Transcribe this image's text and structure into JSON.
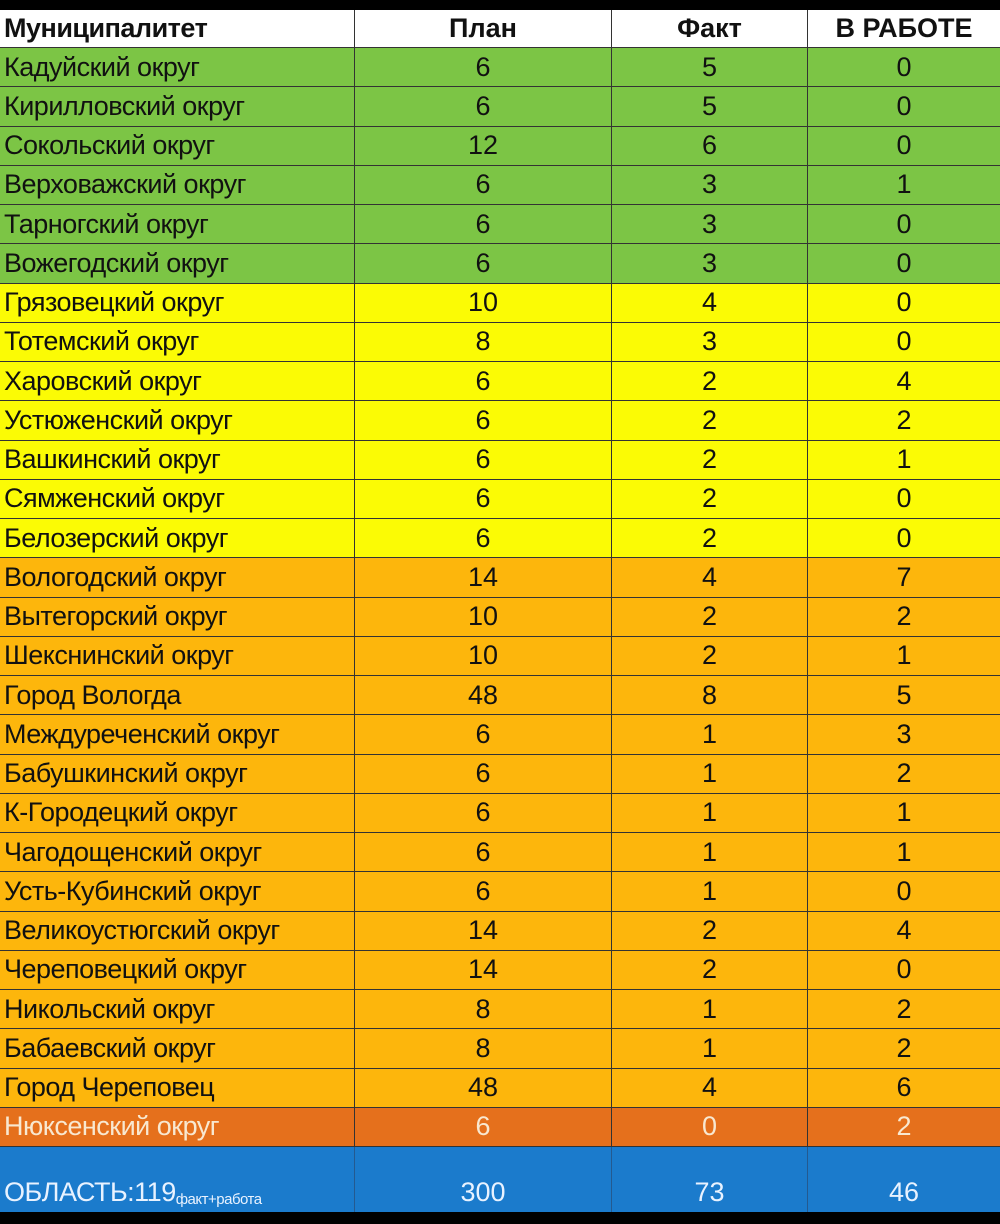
{
  "columns": [
    "Муниципалитет",
    "План",
    "Факт",
    "В РАБОТЕ"
  ],
  "colors": {
    "green": "#7cc545",
    "yellow": "#fbfb05",
    "orange": "#fdb60c",
    "dark_orange": "#e5701c",
    "total": "#1b7bcc"
  },
  "rows": [
    {
      "name": "Кадуйский округ",
      "plan": "6",
      "fact": "5",
      "work": "0",
      "group": "green"
    },
    {
      "name": "Кирилловский округ",
      "plan": "6",
      "fact": "5",
      "work": "0",
      "group": "green"
    },
    {
      "name": "Сокольский округ",
      "plan": "12",
      "fact": "6",
      "work": "0",
      "group": "green"
    },
    {
      "name": "Верховажский округ",
      "plan": "6",
      "fact": "3",
      "work": "1",
      "group": "green"
    },
    {
      "name": "Тарногский округ",
      "plan": "6",
      "fact": "3",
      "work": "0",
      "group": "green"
    },
    {
      "name": "Вожегодский округ",
      "plan": "6",
      "fact": "3",
      "work": "0",
      "group": "green"
    },
    {
      "name": "Грязовецкий округ",
      "plan": "10",
      "fact": "4",
      "work": "0",
      "group": "yellow"
    },
    {
      "name": "Тотемский округ",
      "plan": "8",
      "fact": "3",
      "work": "0",
      "group": "yellow"
    },
    {
      "name": "Харовский округ",
      "plan": "6",
      "fact": "2",
      "work": "4",
      "group": "yellow"
    },
    {
      "name": "Устюженский округ",
      "plan": "6",
      "fact": "2",
      "work": "2",
      "group": "yellow"
    },
    {
      "name": "Вашкинский округ",
      "plan": "6",
      "fact": "2",
      "work": "1",
      "group": "yellow"
    },
    {
      "name": "Сямженский округ",
      "plan": "6",
      "fact": "2",
      "work": "0",
      "group": "yellow"
    },
    {
      "name": "Белозерский округ",
      "plan": "6",
      "fact": "2",
      "work": "0",
      "group": "yellow"
    },
    {
      "name": "Вологодский округ",
      "plan": "14",
      "fact": "4",
      "work": "7",
      "group": "orange"
    },
    {
      "name": "Вытегорский округ",
      "plan": "10",
      "fact": "2",
      "work": "2",
      "group": "orange"
    },
    {
      "name": "Шекснинский округ",
      "plan": "10",
      "fact": "2",
      "work": "1",
      "group": "orange"
    },
    {
      "name": "Город Вологда",
      "plan": "48",
      "fact": "8",
      "work": "5",
      "group": "orange"
    },
    {
      "name": "Междуреченский округ",
      "plan": "6",
      "fact": "1",
      "work": "3",
      "group": "orange"
    },
    {
      "name": "Бабушкинский округ",
      "plan": "6",
      "fact": "1",
      "work": "2",
      "group": "orange"
    },
    {
      "name": "К-Городецкий округ",
      "plan": "6",
      "fact": "1",
      "work": "1",
      "group": "orange"
    },
    {
      "name": "Чагодощенский округ",
      "plan": "6",
      "fact": "1",
      "work": "1",
      "group": "orange"
    },
    {
      "name": "Усть-Кубинский округ",
      "plan": "6",
      "fact": "1",
      "work": "0",
      "group": "orange"
    },
    {
      "name": "Великоустюгский округ",
      "plan": "14",
      "fact": "2",
      "work": "4",
      "group": "orange"
    },
    {
      "name": "Череповецкий округ",
      "plan": "14",
      "fact": "2",
      "work": "0",
      "group": "orange"
    },
    {
      "name": "Никольский округ",
      "plan": "8",
      "fact": "1",
      "work": "2",
      "group": "orange"
    },
    {
      "name": "Бабаевский округ",
      "plan": "8",
      "fact": "1",
      "work": "2",
      "group": "orange"
    },
    {
      "name": "Город Череповец",
      "plan": "48",
      "fact": "4",
      "work": "6",
      "group": "orange"
    },
    {
      "name": "Нюксенский округ",
      "plan": "6",
      "fact": "0",
      "work": "2",
      "group": "dark"
    }
  ],
  "total": {
    "label": "ОБЛАСТЬ:119",
    "label_sub": "факт+работа",
    "plan": "300",
    "fact": "73",
    "work": "46"
  }
}
